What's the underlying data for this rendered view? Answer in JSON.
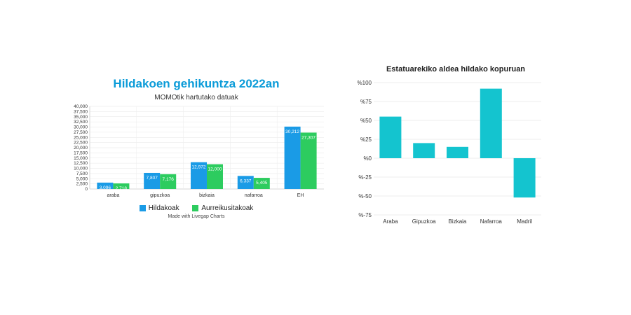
{
  "chart_data": [
    {
      "type": "bar",
      "title": "Hildakoen gehikuntza 2022an",
      "subtitle": "MOMOtik hartutako datuak",
      "categories": [
        "araba",
        "gipuzkoa",
        "bizkaia",
        "nafarroa",
        "EH"
      ],
      "series": [
        {
          "name": "Hildakoak",
          "color": "#1a9be6",
          "values": [
            3096,
            7807,
            12972,
            6337,
            30212
          ],
          "labels": [
            "3,096",
            "7,807",
            "12,972",
            "6,337",
            "30,212"
          ]
        },
        {
          "name": "Aurreikusitakoak",
          "color": "#2dcc5f",
          "values": [
            2718,
            7176,
            12000,
            5405,
            27307
          ],
          "labels": [
            "2,718",
            "7,176",
            "12,000",
            "5,405",
            "27,307"
          ]
        }
      ],
      "ylim": [
        0,
        40000
      ],
      "yticks": [
        "0",
        "2,500",
        "5,000",
        "7,500",
        "10,000",
        "12,500",
        "15,000",
        "17,500",
        "20,000",
        "22,500",
        "25,000",
        "27,500",
        "30,000",
        "32,500",
        "35,000",
        "37,500",
        "40,000"
      ],
      "legend_position": "bottom",
      "credit": "Made with Livegap Charts",
      "grid": true
    },
    {
      "type": "bar",
      "title": "Estatuarekiko aldea hildako kopuruan",
      "categories": [
        "Araba",
        "Gipuzkoa",
        "Bizkaia",
        "Nafarroa",
        "Madril"
      ],
      "values": [
        55,
        20,
        15,
        92,
        -52
      ],
      "color": "#14c4cf",
      "ylim": [
        -75,
        100
      ],
      "yticks": [
        "%-75",
        "%-50",
        "%-25",
        "%0",
        "%25",
        "%50",
        "%75",
        "%100"
      ],
      "grid": true
    }
  ]
}
